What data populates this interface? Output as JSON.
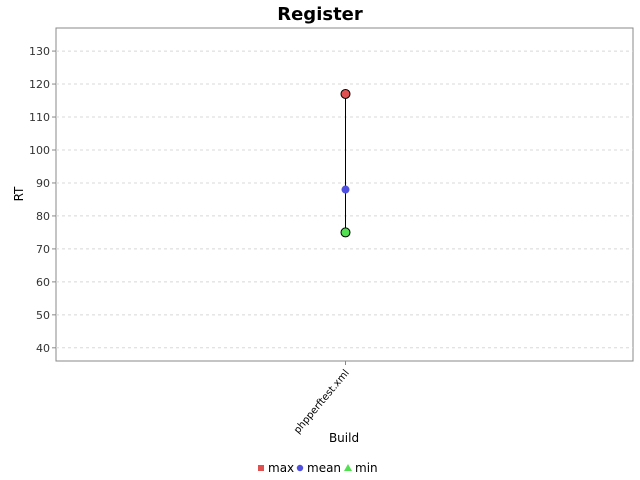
{
  "chart_data": {
    "type": "line",
    "title": "Register",
    "xlabel": "Build",
    "ylabel": "RT",
    "categories": [
      "phpperftest.xml"
    ],
    "series": [
      {
        "name": "max",
        "values": [
          117
        ],
        "color": "#e05050",
        "marker": "square"
      },
      {
        "name": "mean",
        "values": [
          88
        ],
        "color": "#5050e0",
        "marker": "circle"
      },
      {
        "name": "min",
        "values": [
          75
        ],
        "color": "#50e050",
        "marker": "triangle"
      }
    ],
    "ylim": [
      36,
      137
    ],
    "yticks": [
      40,
      50,
      60,
      70,
      80,
      90,
      100,
      110,
      120,
      130
    ],
    "grid": true,
    "legend": "bottom"
  }
}
